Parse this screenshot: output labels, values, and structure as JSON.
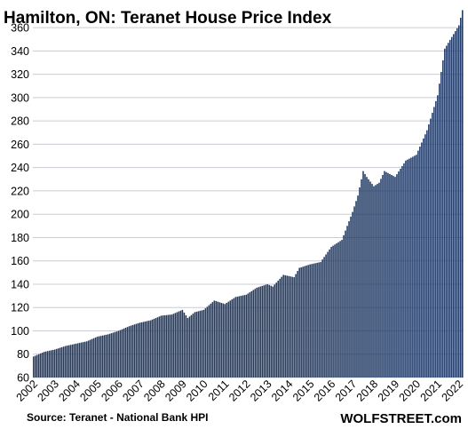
{
  "chart_data": {
    "type": "bar",
    "title": "Hamilton, ON: Teranet House Price Index",
    "source": "Source: Teranet - National Bank HPI",
    "brand": "WOLFSTREET.com",
    "ylim": [
      60,
      370
    ],
    "yticks": [
      60,
      80,
      100,
      120,
      140,
      160,
      180,
      200,
      220,
      240,
      260,
      280,
      300,
      320,
      340,
      360
    ],
    "xticks": [
      "2002",
      "2003",
      "2004",
      "2005",
      "2006",
      "2007",
      "2008",
      "2009",
      "2010",
      "2011",
      "2012",
      "2013",
      "2014",
      "2015",
      "2016",
      "2017",
      "2018",
      "2019",
      "2020",
      "2021",
      "2022"
    ],
    "grid": true,
    "colors": {
      "bar": "#1f3864",
      "grid": "#c9ccd4"
    },
    "start": "2002-01",
    "frequency": "monthly",
    "anchors": [
      [
        "2002-01",
        78
      ],
      [
        "2002-07",
        82
      ],
      [
        "2003-01",
        84
      ],
      [
        "2003-07",
        87
      ],
      [
        "2004-01",
        89
      ],
      [
        "2004-07",
        91
      ],
      [
        "2005-01",
        95
      ],
      [
        "2005-07",
        97
      ],
      [
        "2006-01",
        100
      ],
      [
        "2006-07",
        104
      ],
      [
        "2007-01",
        107
      ],
      [
        "2007-07",
        109
      ],
      [
        "2008-01",
        113
      ],
      [
        "2008-07",
        114
      ],
      [
        "2009-01",
        118
      ],
      [
        "2009-04",
        111
      ],
      [
        "2009-08",
        116
      ],
      [
        "2010-01",
        118
      ],
      [
        "2010-07",
        126
      ],
      [
        "2011-01",
        123
      ],
      [
        "2011-07",
        129
      ],
      [
        "2012-01",
        131
      ],
      [
        "2012-07",
        137
      ],
      [
        "2013-01",
        140
      ],
      [
        "2013-04",
        138
      ],
      [
        "2013-10",
        148
      ],
      [
        "2014-04",
        146
      ],
      [
        "2014-07",
        154
      ],
      [
        "2015-01",
        157
      ],
      [
        "2015-07",
        159
      ],
      [
        "2016-01",
        172
      ],
      [
        "2016-07",
        178
      ],
      [
        "2017-01",
        202
      ],
      [
        "2017-04",
        216
      ],
      [
        "2017-07",
        237
      ],
      [
        "2017-09",
        232
      ],
      [
        "2018-01",
        224
      ],
      [
        "2018-04",
        227
      ],
      [
        "2018-07",
        237
      ],
      [
        "2019-01",
        232
      ],
      [
        "2019-07",
        246
      ],
      [
        "2020-01",
        251
      ],
      [
        "2020-07",
        272
      ],
      [
        "2021-01",
        302
      ],
      [
        "2021-05",
        342
      ],
      [
        "2021-09",
        352
      ],
      [
        "2022-01",
        362
      ],
      [
        "2022-03",
        375
      ]
    ]
  }
}
